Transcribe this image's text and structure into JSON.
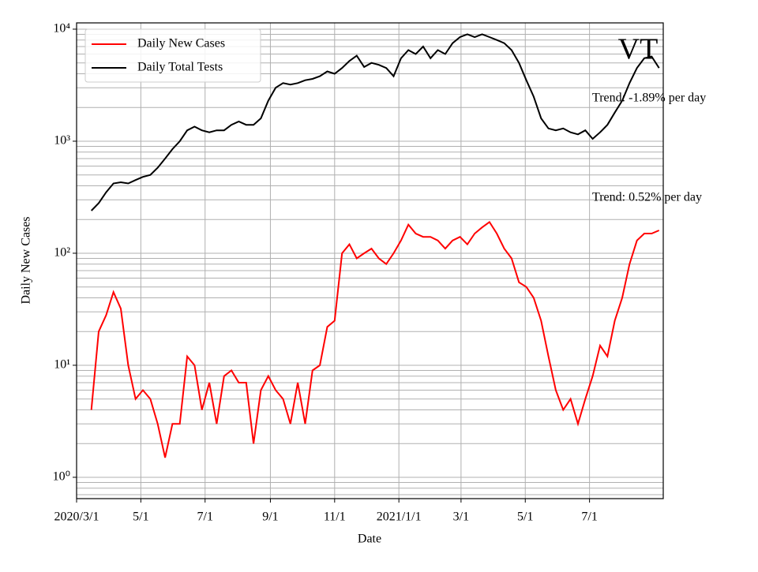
{
  "chart_data": {
    "type": "line",
    "x_label": "Date",
    "y_label": "Daily New Cases",
    "annotations": [
      "VT",
      "Trend: -1.89% per day",
      "Trend: 0.52% per day"
    ],
    "x": [
      "2020-03-15",
      "2020-03-22",
      "2020-03-29",
      "2020-04-05",
      "2020-04-12",
      "2020-04-19",
      "2020-04-26",
      "2020-05-03",
      "2020-05-10",
      "2020-05-17",
      "2020-05-24",
      "2020-05-31",
      "2020-06-07",
      "2020-06-14",
      "2020-06-21",
      "2020-06-28",
      "2020-07-05",
      "2020-07-12",
      "2020-07-19",
      "2020-07-26",
      "2020-08-02",
      "2020-08-09",
      "2020-08-16",
      "2020-08-23",
      "2020-08-30",
      "2020-09-06",
      "2020-09-13",
      "2020-09-20",
      "2020-09-27",
      "2020-10-04",
      "2020-10-11",
      "2020-10-18",
      "2020-10-25",
      "2020-11-01",
      "2020-11-08",
      "2020-11-15",
      "2020-11-22",
      "2020-11-29",
      "2020-12-06",
      "2020-12-13",
      "2020-12-20",
      "2020-12-27",
      "2021-01-03",
      "2021-01-10",
      "2021-01-17",
      "2021-01-24",
      "2021-01-31",
      "2021-02-07",
      "2021-02-14",
      "2021-02-21",
      "2021-02-28",
      "2021-03-07",
      "2021-03-14",
      "2021-03-21",
      "2021-03-28",
      "2021-04-04",
      "2021-04-11",
      "2021-04-18",
      "2021-04-25",
      "2021-05-02",
      "2021-05-09",
      "2021-05-16",
      "2021-05-23",
      "2021-05-30",
      "2021-06-06",
      "2021-06-13",
      "2021-06-20",
      "2021-06-27",
      "2021-07-04",
      "2021-07-11",
      "2021-07-18",
      "2021-07-25",
      "2021-08-01",
      "2021-08-08",
      "2021-08-15",
      "2021-08-22",
      "2021-08-29",
      "2021-09-05"
    ],
    "series": [
      {
        "name": "Daily New Cases",
        "color": "#ff0000",
        "values": [
          4,
          20,
          28,
          45,
          32,
          10,
          5,
          6,
          5,
          3,
          1.5,
          3,
          3,
          12,
          10,
          4,
          7,
          3,
          8,
          9,
          7,
          7,
          2,
          6,
          8,
          6,
          5,
          3,
          7,
          3,
          9,
          10,
          22,
          25,
          100,
          120,
          90,
          100,
          110,
          90,
          80,
          100,
          130,
          180,
          150,
          140,
          140,
          130,
          110,
          130,
          140,
          120,
          150,
          170,
          190,
          150,
          110,
          90,
          55,
          50,
          40,
          25,
          12,
          6,
          4,
          5,
          3,
          5,
          8,
          15,
          12,
          25,
          40,
          80,
          130,
          150,
          150,
          160
        ]
      },
      {
        "name": "Daily Total Tests",
        "color": "#000000",
        "values": [
          240,
          280,
          350,
          420,
          430,
          420,
          450,
          480,
          500,
          580,
          700,
          850,
          1000,
          1250,
          1350,
          1250,
          1200,
          1250,
          1250,
          1400,
          1500,
          1400,
          1400,
          1600,
          2300,
          3000,
          3300,
          3200,
          3300,
          3500,
          3600,
          3800,
          4200,
          4000,
          4500,
          5200,
          5800,
          4600,
          5000,
          4800,
          4500,
          3800,
          5500,
          6500,
          6000,
          7000,
          5500,
          6500,
          6000,
          7500,
          8500,
          9000,
          8500,
          9000,
          8500,
          8000,
          7500,
          6500,
          5000,
          3500,
          2500,
          1600,
          1300,
          1250,
          1300,
          1200,
          1150,
          1250,
          1050,
          1200,
          1400,
          1800,
          2300,
          3300,
          4500,
          5500,
          5700,
          4500
        ]
      }
    ],
    "xlim": [
      "2020-03-01",
      "2021-09-09"
    ],
    "xticks": [
      {
        "value": "2020-03-01",
        "label": "2020/3/1"
      },
      {
        "value": "2020-05-01",
        "label": "5/1"
      },
      {
        "value": "2020-07-01",
        "label": "7/1"
      },
      {
        "value": "2020-09-01",
        "label": "9/1"
      },
      {
        "value": "2020-11-01",
        "label": "11/1"
      },
      {
        "value": "2021-01-01",
        "label": "2021/1/1"
      },
      {
        "value": "2021-03-01",
        "label": "3/1"
      },
      {
        "value": "2021-05-01",
        "label": "5/1"
      },
      {
        "value": "2021-07-01",
        "label": "7/1"
      }
    ],
    "ylim": [
      0.645,
      11380
    ],
    "y_scale": "log",
    "yticks": [
      {
        "value": 1,
        "label": "10⁰"
      },
      {
        "value": 10,
        "label": "10¹"
      },
      {
        "value": 100,
        "label": "10²"
      },
      {
        "value": 1000,
        "label": "10³"
      },
      {
        "value": 10000,
        "label": "10⁴"
      }
    ],
    "minor_yticks": [
      0.7,
      0.8,
      0.9,
      2,
      3,
      4,
      5,
      6,
      7,
      8,
      9,
      20,
      30,
      40,
      50,
      60,
      70,
      80,
      90,
      200,
      300,
      400,
      500,
      600,
      700,
      800,
      900,
      2000,
      3000,
      4000,
      5000,
      6000,
      7000,
      8000,
      9000
    ],
    "grid": true,
    "legend": "upper left"
  }
}
